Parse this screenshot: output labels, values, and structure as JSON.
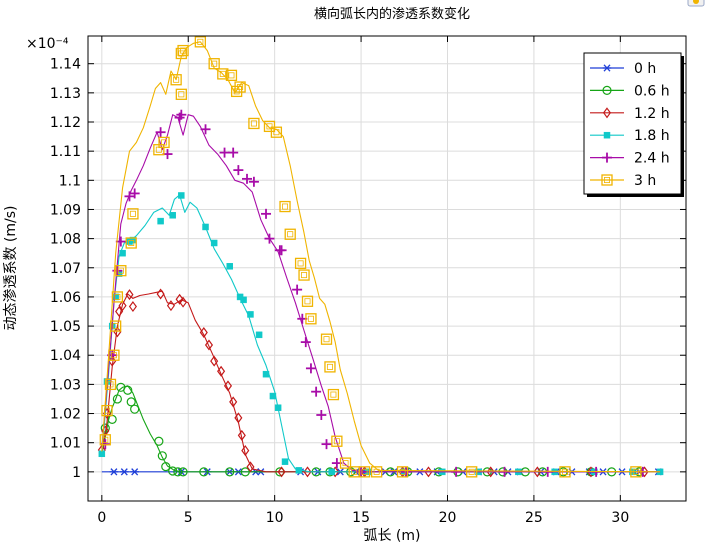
{
  "chart_data": {
    "type": "line",
    "title": "横向弧长内的渗透系数变化",
    "xlabel": "弧长 (m)",
    "ylabel": "动态渗透系数 (m/s)",
    "y_multiplier_label": "×10⁻⁴",
    "xlim": [
      -0.8,
      33.8
    ],
    "ylim": [
      0.99,
      1.1495
    ],
    "xticks": [
      0,
      5,
      10,
      15,
      20,
      25,
      30
    ],
    "yticks": [
      1,
      1.01,
      1.02,
      1.03,
      1.04,
      1.05,
      1.06,
      1.07,
      1.08,
      1.09,
      1.1,
      1.11,
      1.12,
      1.13,
      1.14
    ],
    "ytick_labels": [
      "1",
      "1.01",
      "1.02",
      "1.03",
      "1.04",
      "1.05",
      "1.06",
      "1.07",
      "1.08",
      "1.09",
      "1.1",
      "1.11",
      "1.12",
      "1.13",
      "1.14"
    ],
    "grid": true,
    "legend_position": "top-right",
    "series": [
      {
        "name": "0 h",
        "color": "#1f3fd8",
        "marker": "asterisk",
        "x": [
          0,
          32.3
        ],
        "y": [
          1.0,
          1.0
        ],
        "marker_x": [
          0.7,
          1.3,
          1.9,
          4.6,
          6.1,
          7.4,
          7.9,
          8.9,
          9.2,
          11.5,
          12.5,
          13.8,
          14.7,
          15.1,
          16.4,
          16.9,
          17.6,
          18.4,
          19.4,
          20.9,
          21.8,
          22.7,
          23.5,
          24.2,
          25.4,
          26.3,
          27.2,
          28.2,
          29.0,
          30.1,
          31.1,
          32.2
        ]
      },
      {
        "name": "0.6 h",
        "color": "#16a516",
        "marker": "circle",
        "x": [
          0.0,
          0.2,
          0.4,
          0.6,
          0.8,
          1.0,
          1.2,
          1.5,
          1.8,
          2.0,
          2.4,
          2.8,
          3.2,
          3.5,
          3.8,
          4.2,
          4.6,
          5.5,
          8.0,
          32.3
        ],
        "y": [
          1.006,
          1.012,
          1.018,
          1.022,
          1.025,
          1.028,
          1.029,
          1.0295,
          1.027,
          1.024,
          1.018,
          1.013,
          1.009,
          1.005,
          1.002,
          1.0005,
          1.0,
          1.0,
          1.0,
          1.0
        ],
        "marker_x": [
          0.2,
          0.6,
          0.9,
          1.1,
          1.5,
          1.7,
          1.9,
          3.3,
          3.5,
          3.7,
          4.1,
          4.4,
          4.7,
          5.9,
          7.4,
          8.3,
          10.3,
          12.4,
          13.2,
          14.4,
          16.7,
          17.7,
          19.5,
          20.6,
          22.3,
          23.2,
          24.5,
          25.5,
          26.7,
          28.3,
          29.5,
          31.1
        ],
        "marker_y": [
          1.015,
          1.018,
          1.025,
          1.029,
          1.028,
          1.024,
          1.0215,
          1.0105,
          1.0055,
          1.0018,
          1.0003,
          1.0,
          1.0,
          1.0,
          1.0,
          1.0,
          1.0,
          1.0,
          1.0,
          1.0,
          1.0,
          1.0,
          1.0,
          1.0,
          1.0,
          1.0,
          1.0,
          1.0,
          1.0,
          1.0,
          1.0,
          1.0
        ]
      },
      {
        "name": "1.2 h",
        "color": "#c41a1a",
        "marker": "diamond",
        "x": [
          0.0,
          0.3,
          0.6,
          0.9,
          1.2,
          1.5,
          1.8,
          2.2,
          2.7,
          3.1,
          3.5,
          3.8,
          4.2,
          4.6,
          5.0,
          5.4,
          5.9,
          6.4,
          6.9,
          7.4,
          7.9,
          8.3,
          8.7,
          9.5,
          32.3
        ],
        "y": [
          1.0065,
          1.017,
          1.036,
          1.05,
          1.0575,
          1.061,
          1.0595,
          1.0605,
          1.061,
          1.0615,
          1.062,
          1.058,
          1.0575,
          1.059,
          1.058,
          1.052,
          1.047,
          1.0405,
          1.0335,
          1.027,
          1.017,
          1.006,
          1.001,
          1.0,
          1.0
        ],
        "marker_x": [
          0.0,
          0.2,
          0.3,
          0.6,
          0.9,
          1.0,
          1.2,
          1.6,
          1.8,
          3.4,
          4.0,
          4.5,
          4.7,
          5.9,
          6.2,
          6.5,
          6.9,
          7.3,
          7.6,
          7.9,
          8.1,
          8.3,
          8.6,
          10.4,
          11.9,
          13.5,
          15.2,
          17.4,
          18.9,
          22.5,
          25.2,
          28.3,
          31.4
        ],
        "marker_y": [
          1.0075,
          1.014,
          1.02,
          1.038,
          1.048,
          1.055,
          1.057,
          1.0608,
          1.0567,
          1.061,
          1.057,
          1.0592,
          1.0582,
          1.0478,
          1.0435,
          1.038,
          1.0345,
          1.0295,
          1.024,
          1.0185,
          1.0125,
          1.0073,
          1.0017,
          1.0,
          1.0,
          1.0,
          1.0,
          1.0,
          1.0,
          1.0,
          1.0,
          1.0,
          1.0
        ]
      },
      {
        "name": "1.8 h",
        "color": "#10c9c9",
        "marker": "square",
        "x": [
          0.0,
          0.4,
          0.7,
          1.0,
          1.3,
          1.6,
          2.0,
          2.5,
          3.0,
          3.5,
          3.9,
          4.2,
          4.5,
          4.8,
          5.1,
          5.5,
          6.0,
          6.5,
          7.0,
          7.5,
          8.0,
          8.5,
          9.0,
          9.5,
          10.0,
          10.4,
          10.8,
          11.2,
          12.0,
          32.3
        ],
        "y": [
          1.006,
          1.034,
          1.058,
          1.074,
          1.0785,
          1.079,
          1.081,
          1.0845,
          1.089,
          1.0905,
          1.088,
          1.0935,
          1.095,
          1.089,
          1.0925,
          1.0905,
          1.084,
          1.0765,
          1.0715,
          1.066,
          1.0595,
          1.0535,
          1.0435,
          1.0365,
          1.0275,
          1.016,
          1.0045,
          1.001,
          1.0,
          1.0
        ],
        "marker_x": [
          0.0,
          0.3,
          0.6,
          0.8,
          1.0,
          1.2,
          1.6,
          1.8,
          3.4,
          4.1,
          4.6,
          6.0,
          6.5,
          7.4,
          8.0,
          8.2,
          8.6,
          9.1,
          9.5,
          9.9,
          10.2,
          10.6,
          11.4,
          13.3,
          15.4,
          17.5,
          19.7,
          21.8,
          24.1,
          26.2,
          28.5,
          30.7,
          32.3
        ],
        "marker_y": [
          1.0062,
          1.031,
          1.05,
          1.06,
          1.068,
          1.075,
          1.079,
          1.0795,
          1.086,
          1.088,
          1.0948,
          1.084,
          1.0785,
          1.0705,
          1.06,
          1.059,
          1.054,
          1.047,
          1.0335,
          1.026,
          1.022,
          1.0035,
          1.0005,
          1.0,
          1.0,
          1.0,
          1.0,
          1.0,
          1.0,
          1.0,
          1.0,
          1.0,
          1.0
        ]
      },
      {
        "name": "2.4 h",
        "color": "#a80ca8",
        "marker": "plus",
        "x": [
          0.0,
          0.4,
          0.8,
          1.1,
          1.4,
          1.7,
          2.0,
          2.4,
          2.8,
          3.2,
          3.5,
          3.8,
          4.1,
          4.4,
          4.7,
          5.0,
          5.3,
          5.7,
          6.2,
          6.7,
          7.2,
          7.7,
          8.2,
          8.7,
          9.2,
          9.7,
          10.2,
          10.7,
          11.2,
          11.7,
          12.2,
          12.7,
          13.1,
          13.5,
          14.0,
          14.5,
          15.2,
          32.3
        ],
        "y": [
          1.008,
          1.036,
          1.065,
          1.085,
          1.092,
          1.0965,
          1.1,
          1.105,
          1.111,
          1.1165,
          1.1105,
          1.1155,
          1.1225,
          1.1215,
          1.1155,
          1.1225,
          1.122,
          1.1185,
          1.112,
          1.109,
          1.105,
          1.1,
          1.099,
          1.096,
          1.0865,
          1.08,
          1.0755,
          1.0665,
          1.058,
          1.0485,
          1.039,
          1.0295,
          1.0225,
          1.012,
          1.003,
          1.0005,
          1.0,
          1.0
        ],
        "marker_x": [
          0.2,
          0.6,
          0.9,
          1.1,
          1.6,
          1.9,
          3.4,
          3.8,
          4.5,
          4.6,
          6.0,
          7.1,
          7.6,
          7.9,
          8.4,
          8.8,
          9.5,
          9.7,
          10.3,
          10.4,
          11.3,
          11.6,
          11.8,
          12.1,
          12.4,
          12.7,
          13.0,
          13.6,
          15.0,
          17.6,
          20.5,
          23.3,
          25.8,
          28.6,
          31.3
        ],
        "marker_y": [
          1.0095,
          1.04,
          1.069,
          1.079,
          1.0945,
          1.0955,
          1.1165,
          1.109,
          1.1215,
          1.1225,
          1.1175,
          1.1095,
          1.1095,
          1.1035,
          1.1005,
          1.0995,
          1.0885,
          1.08,
          1.076,
          1.076,
          1.0625,
          1.0525,
          1.0445,
          1.0355,
          1.0275,
          1.0195,
          1.0095,
          1.003,
          1.0,
          1.0,
          1.0,
          1.0,
          1.0,
          1.0,
          1.0
        ]
      },
      {
        "name": "3 h",
        "color": "#f0b400",
        "marker": "square-open",
        "x": [
          0.0,
          0.4,
          0.8,
          1.2,
          1.6,
          2.0,
          2.4,
          2.8,
          3.1,
          3.4,
          3.7,
          4.0,
          4.3,
          4.6,
          4.9,
          5.3,
          5.7,
          6.1,
          6.5,
          6.9,
          7.3,
          7.7,
          8.1,
          8.5,
          8.9,
          9.3,
          9.7,
          10.1,
          10.5,
          10.9,
          11.3,
          11.7,
          12.0,
          12.3,
          12.6,
          12.9,
          13.2,
          13.5,
          13.8,
          14.2,
          14.6,
          15.0,
          15.5,
          16.0,
          32.3
        ],
        "y": [
          1.007,
          1.04,
          1.075,
          1.0975,
          1.11,
          1.113,
          1.118,
          1.1255,
          1.1315,
          1.1335,
          1.1295,
          1.1375,
          1.1345,
          1.1425,
          1.1455,
          1.147,
          1.1475,
          1.1445,
          1.1385,
          1.137,
          1.1345,
          1.13,
          1.1335,
          1.1325,
          1.1255,
          1.1205,
          1.118,
          1.1175,
          1.115,
          1.105,
          1.093,
          1.082,
          1.0725,
          1.0665,
          1.0595,
          1.0575,
          1.0515,
          1.0445,
          1.035,
          1.027,
          1.0175,
          1.009,
          1.003,
          1.0005,
          1.0
        ],
        "marker_x": [
          0.2,
          0.3,
          0.5,
          0.7,
          0.8,
          0.9,
          1.1,
          1.7,
          1.8,
          3.3,
          3.6,
          4.3,
          4.6,
          4.6,
          4.7,
          5.7,
          6.5,
          7.0,
          7.5,
          7.8,
          8.0,
          8.8,
          9.7,
          10.1,
          10.6,
          10.9,
          11.5,
          11.7,
          11.9,
          12.1,
          13.0,
          13.2,
          13.4,
          13.6,
          14.1,
          14.6,
          15.2,
          15.9,
          17.4,
          21.4,
          26.8,
          30.9
        ],
        "marker_y": [
          1.011,
          1.021,
          1.03,
          1.04,
          1.05,
          1.06,
          1.069,
          1.0785,
          1.0885,
          1.1105,
          1.113,
          1.1345,
          1.1295,
          1.1435,
          1.1445,
          1.1475,
          1.14,
          1.1365,
          1.136,
          1.1305,
          1.132,
          1.1195,
          1.1185,
          1.1165,
          1.091,
          1.0815,
          1.0715,
          1.0675,
          1.0585,
          1.0525,
          1.0455,
          1.036,
          1.0265,
          1.0105,
          1.003,
          1.0,
          1.0,
          1.0,
          1.0,
          1.0,
          1.0,
          1.0
        ]
      }
    ]
  }
}
